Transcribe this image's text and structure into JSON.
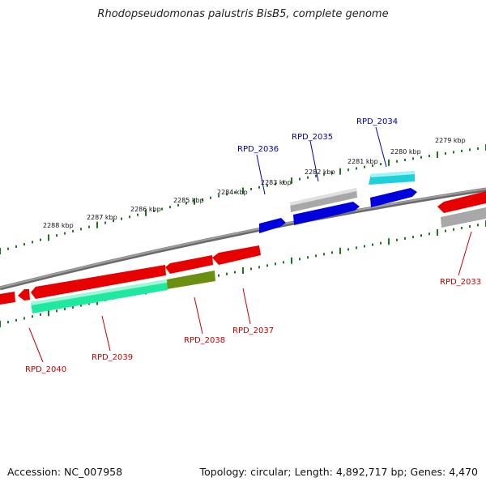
{
  "title": "Rhodopseudomonas palustris BisB5, complete genome",
  "footer": {
    "accession": "Accession: NC_007958",
    "summary": "Topology: circular; Length: 4,892,717 bp; Genes: 4,470"
  },
  "colors": {
    "forward_label": "#0000b0",
    "reverse_label": "#c80000",
    "scale_ticks": "#1a7a1a",
    "backbone": "#808080"
  },
  "scale": {
    "unit": "kbp",
    "labels": [
      "2279 kbp",
      "2280 kbp",
      "2281 kbp",
      "2282 kbp",
      "2283 kbp",
      "2284 kbp",
      "2285 kbp",
      "2286 kbp",
      "2287 kbp",
      "2288 kbp"
    ]
  },
  "genes": {
    "forward": [
      {
        "name": "RPD_2034",
        "color": "cyan"
      },
      {
        "name": "RPD_2035",
        "color": "blue"
      },
      {
        "name": "RPD_2036",
        "color": "blue"
      },
      {
        "name": "",
        "color": "gray"
      }
    ],
    "reverse": [
      {
        "name": "RPD_2033",
        "color": "red"
      },
      {
        "name": "RPD_2037",
        "color": "red"
      },
      {
        "name": "RPD_2038",
        "color": "olive"
      },
      {
        "name": "RPD_2039",
        "color": "mint"
      },
      {
        "name": "RPD_2040",
        "color": "red"
      }
    ]
  }
}
